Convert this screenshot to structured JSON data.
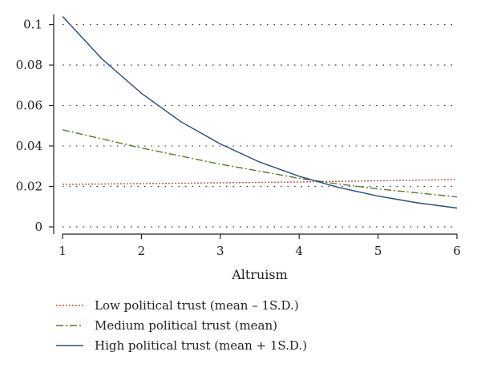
{
  "chart_data": {
    "type": "line",
    "title": "",
    "xlabel": "Altruism",
    "ylabel": "",
    "xlim": [
      1,
      6
    ],
    "ylim": [
      0,
      0.105
    ],
    "xticks": [
      1,
      2,
      3,
      4,
      5,
      6
    ],
    "xtick_labels": [
      "1",
      "2",
      "3",
      "4",
      "5",
      "6"
    ],
    "yticks": [
      0,
      0.02,
      0.04,
      0.06,
      0.08,
      0.1
    ],
    "ytick_labels": [
      "0",
      "0.02",
      "0.04",
      "0.06",
      "0.08",
      "0.1"
    ],
    "grid": "horizontal dotted",
    "legend_position": "bottom",
    "x": [
      1,
      1.5,
      2,
      2.5,
      3,
      3.5,
      4,
      4.5,
      5,
      5.5,
      6
    ],
    "series": [
      {
        "name": "Low political trust (mean – 1S.D.)",
        "color": "#c0504d",
        "dash": "dotted",
        "values": [
          0.021,
          0.0212,
          0.0214,
          0.0216,
          0.0218,
          0.022,
          0.0222,
          0.0225,
          0.0228,
          0.0231,
          0.0234
        ]
      },
      {
        "name": "Medium political trust (mean)",
        "color": "#5a7a2a",
        "dash": "dash-dot",
        "values": [
          0.048,
          0.0435,
          0.039,
          0.035,
          0.031,
          0.0275,
          0.024,
          0.0212,
          0.0188,
          0.0168,
          0.0148
        ]
      },
      {
        "name": "High political trust (mean + 1S.D.)",
        "color": "#2b4a7a",
        "dash": "solid",
        "values": [
          0.104,
          0.083,
          0.066,
          0.052,
          0.041,
          0.032,
          0.025,
          0.0195,
          0.0152,
          0.0119,
          0.0093
        ]
      }
    ]
  }
}
